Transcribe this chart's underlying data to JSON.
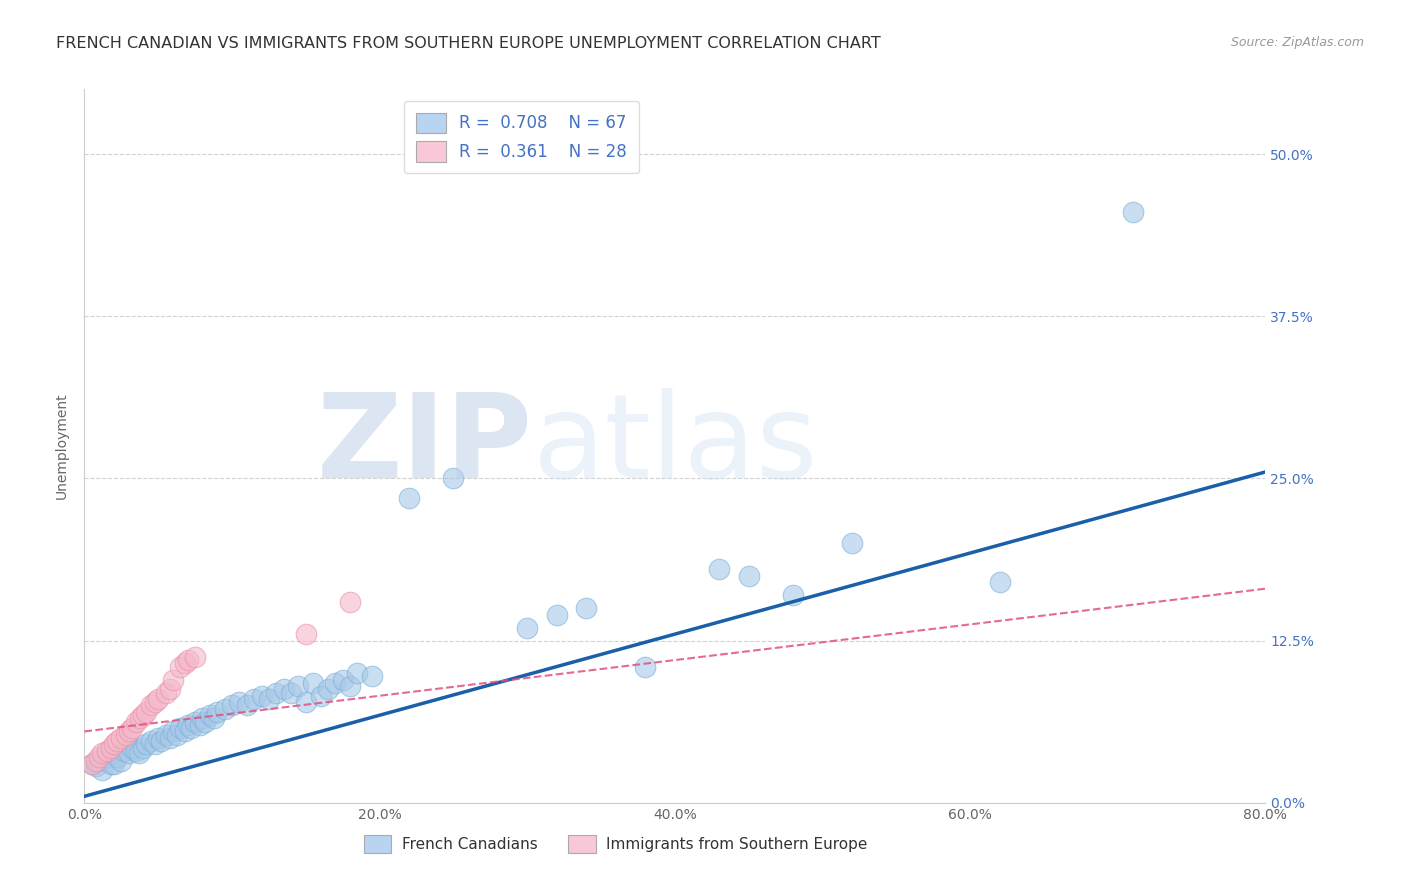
{
  "title": "FRENCH CANADIAN VS IMMIGRANTS FROM SOUTHERN EUROPE UNEMPLOYMENT CORRELATION CHART",
  "source": "Source: ZipAtlas.com",
  "xlim": [
    0.0,
    0.8
  ],
  "ylim": [
    0.0,
    0.55
  ],
  "x_tick_vals": [
    0.0,
    0.2,
    0.4,
    0.6,
    0.8
  ],
  "y_tick_vals": [
    0.0,
    0.125,
    0.25,
    0.375,
    0.5
  ],
  "xlabel_ticks": [
    "0.0%",
    "20.0%",
    "40.0%",
    "60.0%",
    "80.0%"
  ],
  "ylabel_ticks": [
    "0.0%",
    "12.5%",
    "25.0%",
    "37.5%",
    "50.0%"
  ],
  "legend1_label_r": "R = ",
  "legend1_r_val": "0.708",
  "legend1_n": "  N = 67",
  "legend2_label_r": "R = ",
  "legend2_r_val": "0.361",
  "legend2_n": "  N = 28",
  "blue_color": "#a8c8e8",
  "pink_color": "#f4b8c8",
  "blue_line_color": "#1a5fa8",
  "pink_line_color": "#e05080",
  "ylabel": "Unemployment",
  "french_canadian_label": "French Canadians",
  "immigrants_label": "Immigrants from Southern Europe",
  "grid_color": "#cccccc",
  "background_color": "#ffffff",
  "title_fontsize": 11.5,
  "axis_label_fontsize": 10,
  "tick_fontsize": 10,
  "blue_line_x0": 0.0,
  "blue_line_y0": 0.005,
  "blue_line_x1": 0.8,
  "blue_line_y1": 0.255,
  "pink_line_x0": 0.0,
  "pink_line_y0": 0.055,
  "pink_line_x1": 0.8,
  "pink_line_y1": 0.165,
  "blue_scatter_x": [
    0.005,
    0.008,
    0.01,
    0.012,
    0.015,
    0.018,
    0.02,
    0.022,
    0.025,
    0.027,
    0.03,
    0.032,
    0.035,
    0.037,
    0.04,
    0.042,
    0.045,
    0.048,
    0.05,
    0.052,
    0.055,
    0.058,
    0.06,
    0.063,
    0.065,
    0.068,
    0.07,
    0.072,
    0.075,
    0.078,
    0.08,
    0.082,
    0.085,
    0.088,
    0.09,
    0.095,
    0.1,
    0.105,
    0.11,
    0.115,
    0.12,
    0.125,
    0.13,
    0.135,
    0.14,
    0.145,
    0.15,
    0.155,
    0.16,
    0.165,
    0.17,
    0.175,
    0.18,
    0.185,
    0.195,
    0.22,
    0.25,
    0.3,
    0.32,
    0.34,
    0.38,
    0.43,
    0.45,
    0.48,
    0.52,
    0.62,
    0.71
  ],
  "blue_scatter_y": [
    0.03,
    0.028,
    0.032,
    0.025,
    0.035,
    0.03,
    0.03,
    0.035,
    0.032,
    0.04,
    0.038,
    0.042,
    0.04,
    0.038,
    0.042,
    0.045,
    0.048,
    0.045,
    0.05,
    0.048,
    0.052,
    0.05,
    0.055,
    0.052,
    0.058,
    0.055,
    0.06,
    0.058,
    0.062,
    0.06,
    0.065,
    0.062,
    0.068,
    0.065,
    0.07,
    0.072,
    0.075,
    0.078,
    0.075,
    0.08,
    0.082,
    0.08,
    0.085,
    0.088,
    0.085,
    0.09,
    0.078,
    0.092,
    0.082,
    0.088,
    0.092,
    0.095,
    0.09,
    0.1,
    0.098,
    0.235,
    0.25,
    0.135,
    0.145,
    0.15,
    0.105,
    0.18,
    0.175,
    0.16,
    0.2,
    0.17,
    0.455
  ],
  "pink_scatter_x": [
    0.005,
    0.008,
    0.01,
    0.012,
    0.015,
    0.018,
    0.02,
    0.022,
    0.025,
    0.028,
    0.03,
    0.032,
    0.035,
    0.038,
    0.04,
    0.042,
    0.045,
    0.048,
    0.05,
    0.055,
    0.058,
    0.06,
    0.065,
    0.068,
    0.07,
    0.075,
    0.15,
    0.18
  ],
  "pink_scatter_y": [
    0.03,
    0.032,
    0.035,
    0.038,
    0.04,
    0.042,
    0.045,
    0.048,
    0.05,
    0.052,
    0.055,
    0.058,
    0.062,
    0.065,
    0.068,
    0.07,
    0.075,
    0.078,
    0.08,
    0.085,
    0.088,
    0.095,
    0.105,
    0.108,
    0.11,
    0.112,
    0.13,
    0.155
  ]
}
